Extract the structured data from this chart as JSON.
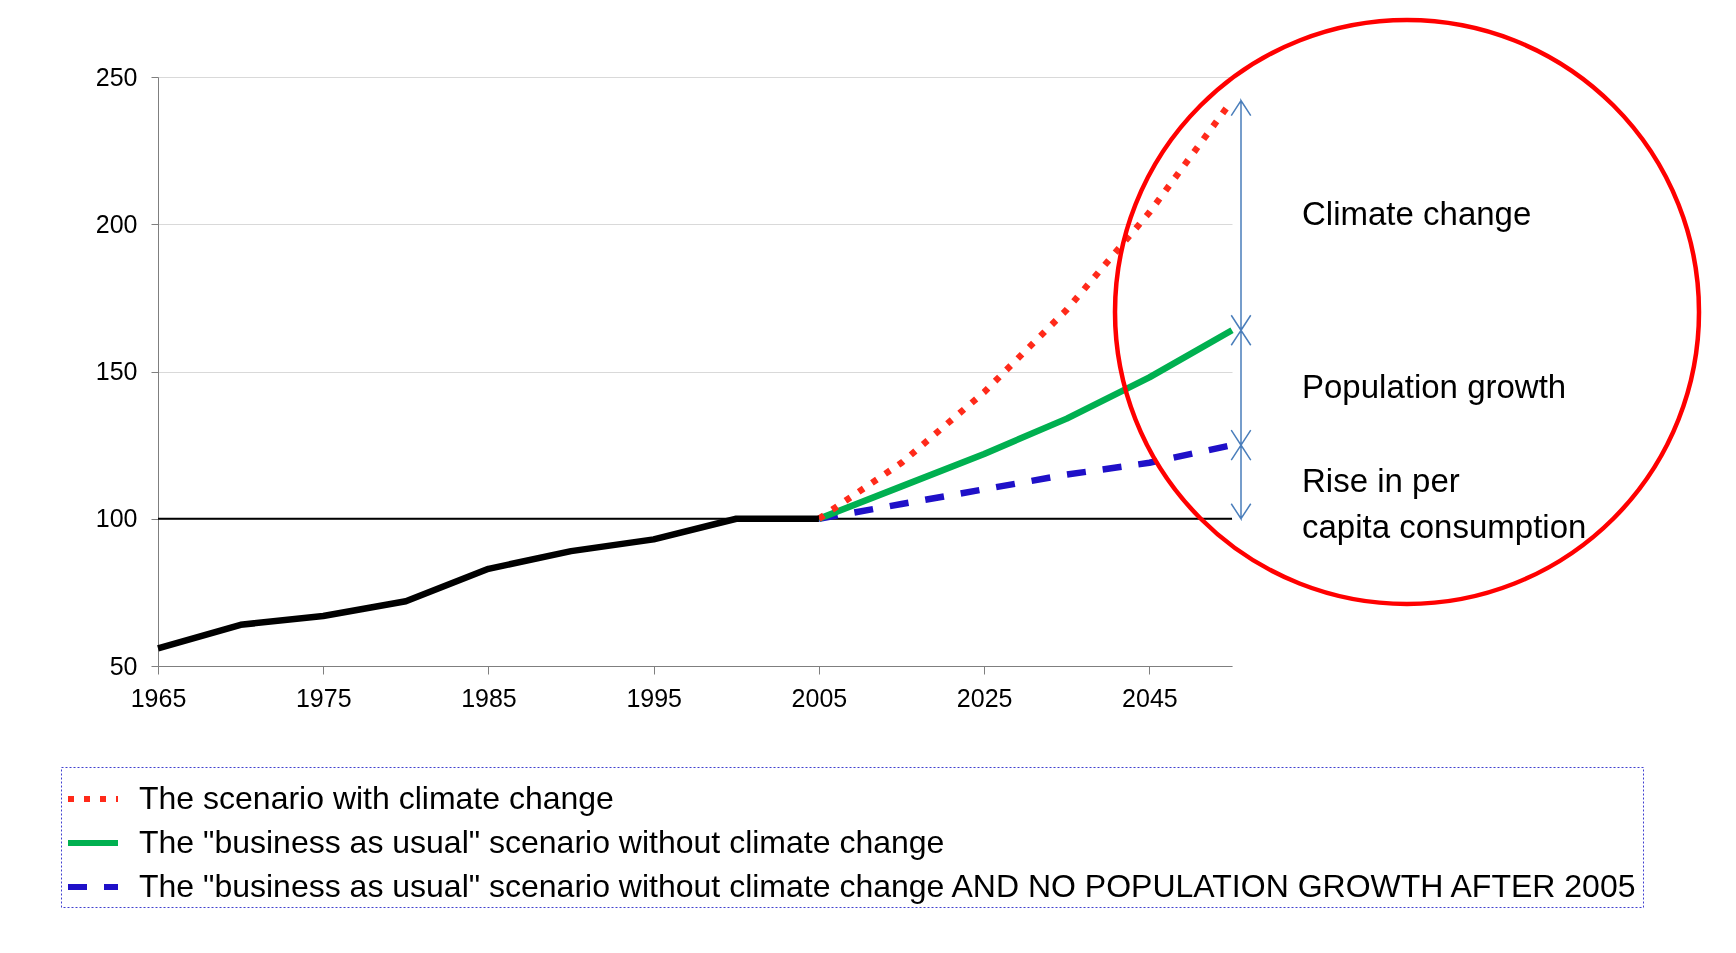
{
  "chart_data": {
    "type": "line",
    "categories": [
      "1965",
      null,
      "1975",
      null,
      "1985",
      null,
      "1995",
      null,
      "2005",
      null,
      "2025",
      null,
      "2045",
      null
    ],
    "series": [
      {
        "color": "#000000",
        "line_style": "solid",
        "values": [
          56,
          64,
          67,
          72,
          83,
          89,
          93,
          100,
          100,
          null,
          null,
          null,
          null,
          null
        ]
      },
      {
        "name": "The scenario with climate change",
        "color": "#ff2a1a",
        "line_style": "dotted",
        "values": [
          null,
          null,
          null,
          null,
          null,
          null,
          null,
          null,
          100,
          119,
          143,
          171,
          204,
          242
        ]
      },
      {
        "name": "The \"business as usual\" scenario without climate change",
        "color": "#00b050",
        "line_style": "solid",
        "values": [
          null,
          null,
          null,
          null,
          null,
          null,
          null,
          null,
          100,
          111,
          122,
          134,
          148,
          164
        ]
      },
      {
        "name": "The \"business as usual\" scenario without climate change AND NO POPULATION GROWTH AFTER 2005",
        "color": "#1f10c8",
        "line_style": "dashed",
        "values": [
          null,
          null,
          null,
          null,
          null,
          null,
          null,
          null,
          100,
          105,
          110,
          115,
          119,
          125
        ]
      }
    ],
    "ylim": [
      50,
      250
    ],
    "yticks": [
      50,
      100,
      150,
      200,
      250
    ],
    "grid": "y",
    "legend": "bottom",
    "ref_lines": [
      {
        "axis": "y",
        "value": 100,
        "color": "#000000"
      }
    ],
    "annotations": [
      "Climate change",
      "Population growth",
      "Rise in per\ncapita consumption"
    ]
  }
}
